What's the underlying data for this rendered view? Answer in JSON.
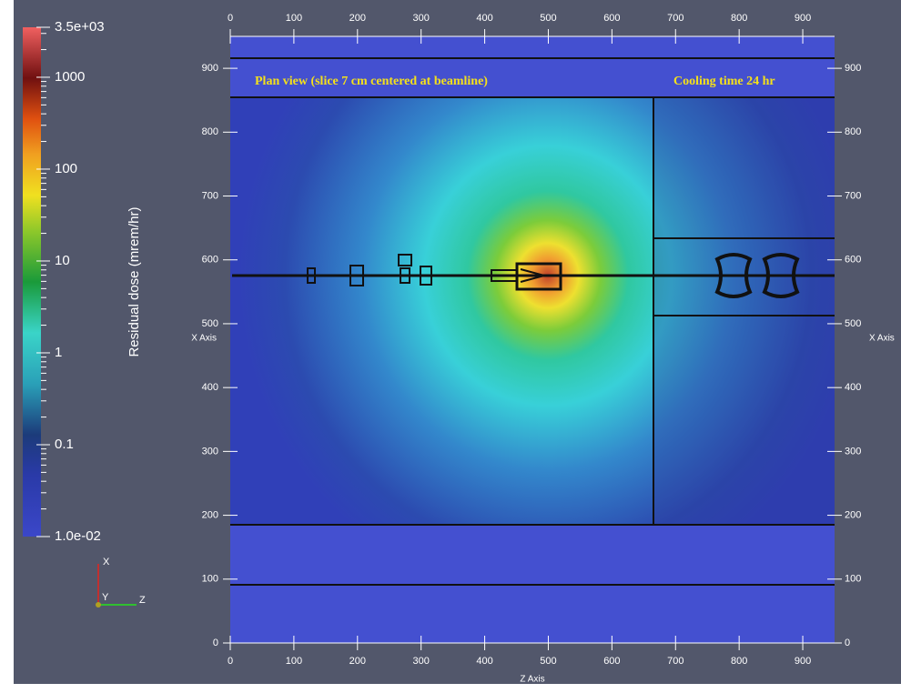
{
  "colorbar": {
    "title": "Residual dose (mrem/hr)",
    "scale": "log",
    "range": [
      0.01,
      3500
    ],
    "ticks": [
      {
        "value": 3500,
        "label": "3.5e+03"
      },
      1000,
      100,
      10,
      1,
      0.1,
      {
        "value": 0.01,
        "label": "1.0e-02"
      }
    ]
  },
  "plot": {
    "annotations": [
      "Plan view (slice 7 cm centered at beamline)",
      "Cooling time 24 hr"
    ],
    "z_axis": {
      "title": "Z Axis",
      "lim": [
        0,
        950
      ],
      "ticks": [
        0,
        100,
        200,
        300,
        400,
        500,
        600,
        700,
        800,
        900
      ]
    },
    "x_axis": {
      "title": "X Axis",
      "lim": [
        0,
        950
      ],
      "ticks": [
        0,
        100,
        200,
        300,
        400,
        500,
        600,
        700,
        800,
        900
      ]
    }
  },
  "orientation": {
    "x": "X",
    "y": "Y",
    "z": "Z"
  }
}
